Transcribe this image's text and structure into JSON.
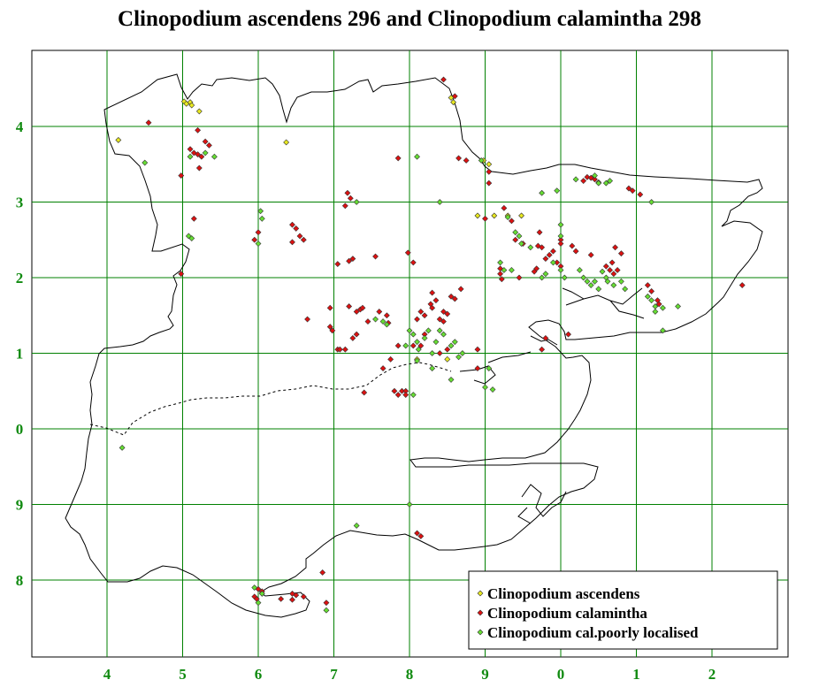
{
  "title": "Clinopodium ascendens 296 and Clinopodium calamintha 298",
  "grid": {
    "x_labels": [
      "4",
      "5",
      "6",
      "7",
      "8",
      "9",
      "0",
      "1",
      "2"
    ],
    "y_labels": [
      "4",
      "3",
      "2",
      "1",
      "0",
      "9",
      "8"
    ]
  },
  "colors": {
    "grid": "#008000",
    "tick": "#108a10",
    "ascendens": "#e8e820",
    "calamintha": "#dd1111",
    "poorly": "#66dd33"
  },
  "legend": {
    "items": [
      {
        "key": "ascendens",
        "label": "Clinopodium ascendens"
      },
      {
        "key": "calamintha",
        "label": "Clinopodium calamintha"
      },
      {
        "key": "poorly",
        "label": "Clinopodium cal.poorly localised"
      }
    ]
  },
  "chart_data": {
    "type": "scatter",
    "title": "Clinopodium ascendens 296 and Clinopodium calamintha 298",
    "x_ticks": [
      "4",
      "5",
      "6",
      "7",
      "8",
      "9",
      "0",
      "1",
      "2"
    ],
    "y_ticks": [
      "4",
      "3",
      "2",
      "1",
      "0",
      "9",
      "8"
    ],
    "grid": true,
    "legend_position": "bottom-right",
    "series": [
      {
        "name": "Clinopodium ascendens",
        "color": "#e8e820",
        "points": [
          [
            4.15,
            3.82
          ],
          [
            5.02,
            4.33
          ],
          [
            5.05,
            4.3
          ],
          [
            5.1,
            4.32
          ],
          [
            5.12,
            4.28
          ],
          [
            5.22,
            4.2
          ],
          [
            6.37,
            3.79
          ],
          [
            8.55,
            4.38
          ],
          [
            8.58,
            4.32
          ],
          [
            8.98,
            3.55
          ],
          [
            9.05,
            3.5
          ],
          [
            8.9,
            2.82
          ],
          [
            9.12,
            2.82
          ],
          [
            9.3,
            2.82
          ],
          [
            9.48,
            2.82
          ],
          [
            8.5,
            0.92
          ],
          [
            8.1,
            0.92
          ]
        ]
      },
      {
        "name": "Clinopodium calamintha",
        "color": "#dd1111",
        "points": [
          [
            4.55,
            4.05
          ],
          [
            5.2,
            3.95
          ],
          [
            5.3,
            3.8
          ],
          [
            5.35,
            3.75
          ],
          [
            5.1,
            3.7
          ],
          [
            5.15,
            3.65
          ],
          [
            5.2,
            3.63
          ],
          [
            5.25,
            3.6
          ],
          [
            5.22,
            3.45
          ],
          [
            4.98,
            3.35
          ],
          [
            5.15,
            2.78
          ],
          [
            4.98,
            2.05
          ],
          [
            6.0,
            2.6
          ],
          [
            5.95,
            2.5
          ],
          [
            6.45,
            2.7
          ],
          [
            6.5,
            2.65
          ],
          [
            6.55,
            2.55
          ],
          [
            6.6,
            2.5
          ],
          [
            6.45,
            2.47
          ],
          [
            7.18,
            3.12
          ],
          [
            7.22,
            3.05
          ],
          [
            7.15,
            2.95
          ],
          [
            7.25,
            2.25
          ],
          [
            7.2,
            2.22
          ],
          [
            7.05,
            2.18
          ],
          [
            7.55,
            2.28
          ],
          [
            7.85,
            3.58
          ],
          [
            7.98,
            2.33
          ],
          [
            8.05,
            2.2
          ],
          [
            8.6,
            4.4
          ],
          [
            8.45,
            4.62
          ],
          [
            8.75,
            3.55
          ],
          [
            8.65,
            3.58
          ],
          [
            9.05,
            3.4
          ],
          [
            9.05,
            3.25
          ],
          [
            9.25,
            2.92
          ],
          [
            9.0,
            2.78
          ],
          [
            9.35,
            2.75
          ],
          [
            9.4,
            2.5
          ],
          [
            9.5,
            2.45
          ],
          [
            9.7,
            2.42
          ],
          [
            9.75,
            2.4
          ],
          [
            9.85,
            2.3
          ],
          [
            9.2,
            2.12
          ],
          [
            9.2,
            2.05
          ],
          [
            9.22,
            1.98
          ],
          [
            9.45,
            2.0
          ],
          [
            9.65,
            2.08
          ],
          [
            9.68,
            2.12
          ],
          [
            9.72,
            2.6
          ],
          [
            9.8,
            2.25
          ],
          [
            9.9,
            2.35
          ],
          [
            9.95,
            2.2
          ],
          [
            10.0,
            2.5
          ],
          [
            10.0,
            2.45
          ],
          [
            10.0,
            2.15
          ],
          [
            10.15,
            2.42
          ],
          [
            10.2,
            2.35
          ],
          [
            10.4,
            2.3
          ],
          [
            10.6,
            2.15
          ],
          [
            10.65,
            2.1
          ],
          [
            10.7,
            2.05
          ],
          [
            10.75,
            2.1
          ],
          [
            10.72,
            2.4
          ],
          [
            10.8,
            2.32
          ],
          [
            10.68,
            2.2
          ],
          [
            10.9,
            3.18
          ],
          [
            10.95,
            3.15
          ],
          [
            11.05,
            3.1
          ],
          [
            10.35,
            3.33
          ],
          [
            10.4,
            3.32
          ],
          [
            10.45,
            3.3
          ],
          [
            10.3,
            3.28
          ],
          [
            10.5,
            3.26
          ],
          [
            11.15,
            1.9
          ],
          [
            11.2,
            1.82
          ],
          [
            11.28,
            1.7
          ],
          [
            11.3,
            1.65
          ],
          [
            12.4,
            1.9
          ],
          [
            7.2,
            1.62
          ],
          [
            7.3,
            1.55
          ],
          [
            7.35,
            1.58
          ],
          [
            7.38,
            1.6
          ],
          [
            7.45,
            1.42
          ],
          [
            7.6,
            1.55
          ],
          [
            7.7,
            1.5
          ],
          [
            7.72,
            1.4
          ],
          [
            6.65,
            1.45
          ],
          [
            6.95,
            1.6
          ],
          [
            6.95,
            1.35
          ],
          [
            6.98,
            1.3
          ],
          [
            7.05,
            1.05
          ],
          [
            7.08,
            1.05
          ],
          [
            7.25,
            1.2
          ],
          [
            7.3,
            1.25
          ],
          [
            7.15,
            1.05
          ],
          [
            7.85,
            1.1
          ],
          [
            7.8,
            0.5
          ],
          [
            7.9,
            0.5
          ],
          [
            7.95,
            0.5
          ],
          [
            7.85,
            0.45
          ],
          [
            7.95,
            0.45
          ],
          [
            7.4,
            0.48
          ],
          [
            7.65,
            0.8
          ],
          [
            7.75,
            0.92
          ],
          [
            8.1,
            1.45
          ],
          [
            8.15,
            1.55
          ],
          [
            8.2,
            1.5
          ],
          [
            8.28,
            1.65
          ],
          [
            8.3,
            1.6
          ],
          [
            8.35,
            1.7
          ],
          [
            8.4,
            1.45
          ],
          [
            8.45,
            1.55
          ],
          [
            8.5,
            1.52
          ],
          [
            8.6,
            1.72
          ],
          [
            8.68,
            1.85
          ],
          [
            8.45,
            1.42
          ],
          [
            8.5,
            1.05
          ],
          [
            8.4,
            1.0
          ],
          [
            8.2,
            1.25
          ],
          [
            8.05,
            1.1
          ],
          [
            8.15,
            1.1
          ],
          [
            8.3,
            1.8
          ],
          [
            8.55,
            1.75
          ],
          [
            8.9,
            1.05
          ],
          [
            8.9,
            0.8
          ],
          [
            9.75,
            1.05
          ],
          [
            9.8,
            1.2
          ],
          [
            10.1,
            1.25
          ],
          [
            8.1,
            8.62
          ],
          [
            8.15,
            8.58
          ],
          [
            6.0,
            7.88
          ],
          [
            6.05,
            7.85
          ],
          [
            5.95,
            7.78
          ],
          [
            5.98,
            7.75
          ],
          [
            6.3,
            7.75
          ],
          [
            6.45,
            7.82
          ],
          [
            6.5,
            7.8
          ],
          [
            6.6,
            7.78
          ],
          [
            6.45,
            7.74
          ],
          [
            6.9,
            7.7
          ],
          [
            6.85,
            8.1
          ]
        ]
      },
      {
        "name": "Clinopodium cal.poorly localised",
        "color": "#66dd33",
        "points": [
          [
            4.5,
            3.52
          ],
          [
            5.1,
            3.6
          ],
          [
            5.3,
            3.65
          ],
          [
            5.42,
            3.6
          ],
          [
            5.08,
            2.55
          ],
          [
            5.12,
            2.52
          ],
          [
            6.03,
            2.88
          ],
          [
            6.05,
            2.78
          ],
          [
            6.0,
            2.45
          ],
          [
            7.3,
            3.0
          ],
          [
            8.1,
            3.6
          ],
          [
            8.4,
            3.0
          ],
          [
            8.95,
            3.55
          ],
          [
            9.3,
            2.8
          ],
          [
            9.4,
            2.6
          ],
          [
            9.45,
            2.55
          ],
          [
            9.48,
            2.45
          ],
          [
            9.6,
            2.4
          ],
          [
            9.2,
            2.2
          ],
          [
            9.25,
            2.1
          ],
          [
            9.35,
            2.1
          ],
          [
            9.9,
            2.2
          ],
          [
            9.75,
            2.0
          ],
          [
            9.8,
            2.05
          ],
          [
            10.0,
            2.7
          ],
          [
            10.0,
            2.55
          ],
          [
            10.0,
            2.1
          ],
          [
            10.05,
            2.0
          ],
          [
            9.75,
            3.12
          ],
          [
            9.95,
            3.15
          ],
          [
            10.2,
            3.3
          ],
          [
            10.45,
            3.35
          ],
          [
            10.5,
            3.25
          ],
          [
            10.6,
            3.25
          ],
          [
            10.65,
            3.28
          ],
          [
            11.2,
            3.0
          ],
          [
            10.25,
            2.1
          ],
          [
            10.3,
            2.0
          ],
          [
            10.35,
            1.95
          ],
          [
            10.4,
            1.9
          ],
          [
            10.45,
            1.95
          ],
          [
            10.5,
            1.85
          ],
          [
            10.55,
            2.08
          ],
          [
            10.6,
            2.0
          ],
          [
            10.62,
            1.95
          ],
          [
            10.7,
            1.9
          ],
          [
            10.8,
            1.95
          ],
          [
            10.85,
            1.85
          ],
          [
            11.15,
            1.75
          ],
          [
            11.2,
            1.7
          ],
          [
            11.25,
            1.62
          ],
          [
            11.25,
            1.55
          ],
          [
            11.35,
            1.6
          ],
          [
            11.55,
            1.62
          ],
          [
            11.35,
            1.3
          ],
          [
            7.55,
            1.45
          ],
          [
            7.65,
            1.42
          ],
          [
            7.7,
            1.38
          ],
          [
            7.95,
            1.1
          ],
          [
            8.0,
            1.3
          ],
          [
            8.05,
            1.25
          ],
          [
            8.1,
            1.15
          ],
          [
            8.12,
            1.05
          ],
          [
            8.2,
            1.2
          ],
          [
            8.25,
            1.3
          ],
          [
            8.3,
            1.0
          ],
          [
            8.35,
            1.15
          ],
          [
            8.4,
            1.3
          ],
          [
            8.45,
            1.25
          ],
          [
            8.55,
            1.1
          ],
          [
            8.6,
            1.15
          ],
          [
            8.65,
            0.95
          ],
          [
            8.7,
            1.0
          ],
          [
            8.55,
            0.65
          ],
          [
            8.3,
            0.8
          ],
          [
            8.1,
            0.9
          ],
          [
            8.05,
            0.45
          ],
          [
            9.05,
            0.8
          ],
          [
            9.0,
            0.55
          ],
          [
            9.1,
            0.52
          ],
          [
            4.2,
            9.75
          ],
          [
            8.0,
            9.0
          ],
          [
            7.3,
            8.72
          ],
          [
            5.95,
            7.9
          ],
          [
            6.05,
            7.82
          ],
          [
            6.0,
            7.7
          ],
          [
            6.9,
            7.6
          ]
        ]
      }
    ]
  }
}
